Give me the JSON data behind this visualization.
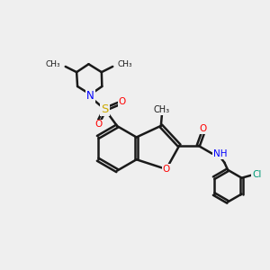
{
  "bg_color": "#efefef",
  "bond_color": "#1a1a1a",
  "bond_width": 1.8,
  "atom_colors": {
    "O": "#ff0000",
    "N": "#0000ff",
    "S": "#ccaa00",
    "Cl": "#009977",
    "H": "#777777",
    "C": "#1a1a1a"
  },
  "font_size": 7.5,
  "figsize": [
    3.0,
    3.0
  ],
  "dpi": 100,
  "xlim": [
    0,
    12
  ],
  "ylim": [
    0,
    12
  ]
}
